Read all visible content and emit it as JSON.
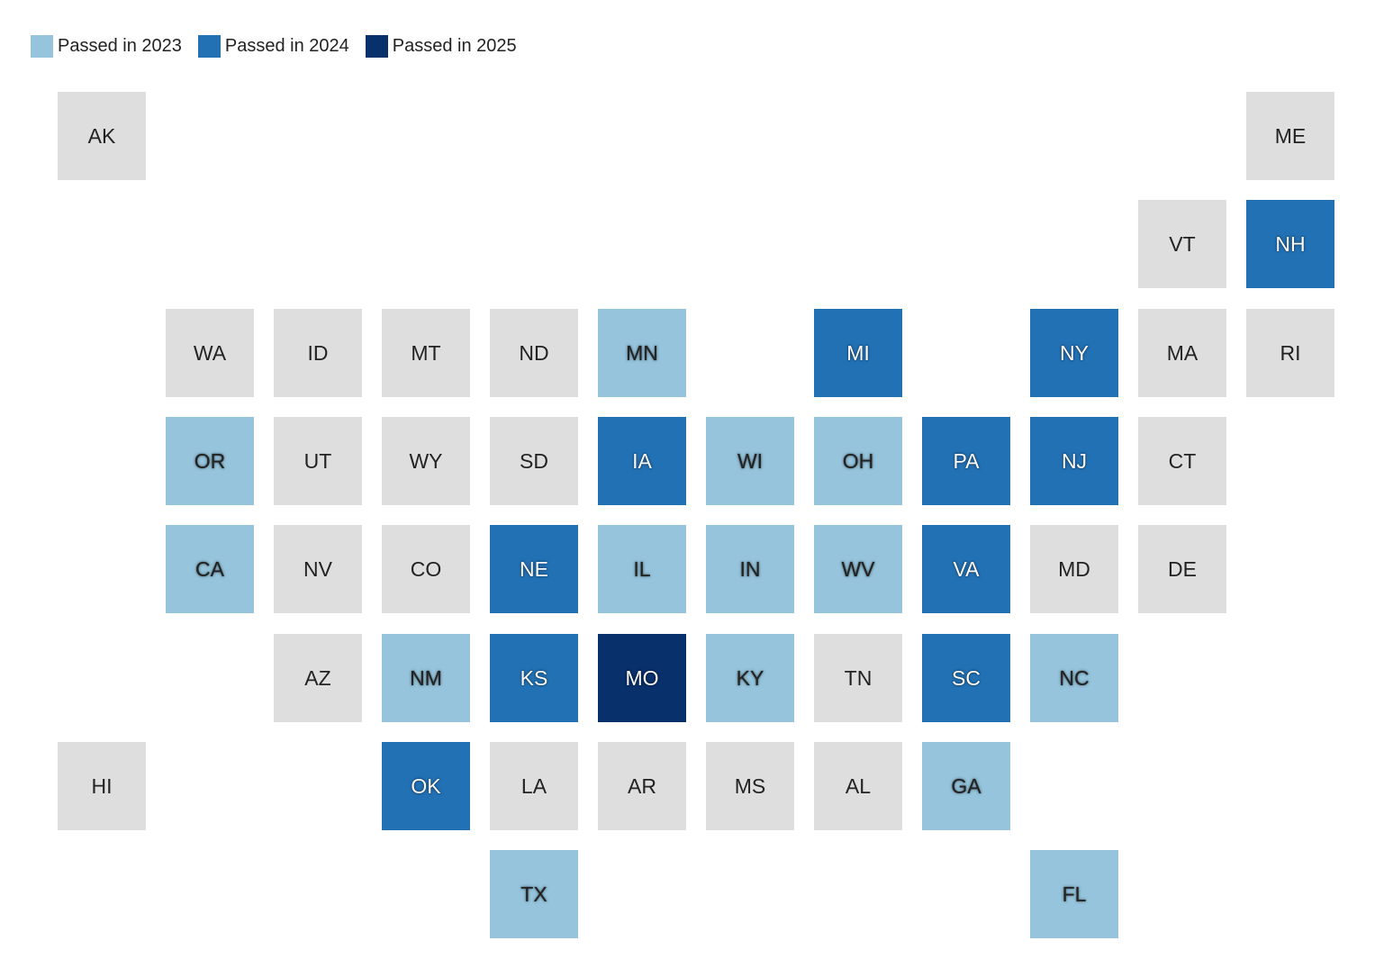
{
  "colors": {
    "none": "#dedede",
    "2023": "#95c4dc",
    "2024": "#2271b5",
    "2025": "#08306b"
  },
  "legend": [
    {
      "key": "2023",
      "label": "Passed in 2023"
    },
    {
      "key": "2024",
      "label": "Passed in 2024"
    },
    {
      "key": "2025",
      "label": "Passed in 2025"
    }
  ],
  "states": [
    {
      "abbr": "AK",
      "row": 0,
      "col": 0,
      "status": "none"
    },
    {
      "abbr": "ME",
      "row": 0,
      "col": 11,
      "status": "none"
    },
    {
      "abbr": "VT",
      "row": 1,
      "col": 10,
      "status": "none"
    },
    {
      "abbr": "NH",
      "row": 1,
      "col": 11,
      "status": "2024"
    },
    {
      "abbr": "WA",
      "row": 2,
      "col": 1,
      "status": "none"
    },
    {
      "abbr": "ID",
      "row": 2,
      "col": 2,
      "status": "none"
    },
    {
      "abbr": "MT",
      "row": 2,
      "col": 3,
      "status": "none"
    },
    {
      "abbr": "ND",
      "row": 2,
      "col": 4,
      "status": "none"
    },
    {
      "abbr": "MN",
      "row": 2,
      "col": 5,
      "status": "2023"
    },
    {
      "abbr": "MI",
      "row": 2,
      "col": 7,
      "status": "2024"
    },
    {
      "abbr": "NY",
      "row": 2,
      "col": 9,
      "status": "2024"
    },
    {
      "abbr": "MA",
      "row": 2,
      "col": 10,
      "status": "none"
    },
    {
      "abbr": "RI",
      "row": 2,
      "col": 11,
      "status": "none"
    },
    {
      "abbr": "OR",
      "row": 3,
      "col": 1,
      "status": "2023"
    },
    {
      "abbr": "UT",
      "row": 3,
      "col": 2,
      "status": "none"
    },
    {
      "abbr": "WY",
      "row": 3,
      "col": 3,
      "status": "none"
    },
    {
      "abbr": "SD",
      "row": 3,
      "col": 4,
      "status": "none"
    },
    {
      "abbr": "IA",
      "row": 3,
      "col": 5,
      "status": "2024"
    },
    {
      "abbr": "WI",
      "row": 3,
      "col": 6,
      "status": "2023"
    },
    {
      "abbr": "OH",
      "row": 3,
      "col": 7,
      "status": "2023"
    },
    {
      "abbr": "PA",
      "row": 3,
      "col": 8,
      "status": "2024"
    },
    {
      "abbr": "NJ",
      "row": 3,
      "col": 9,
      "status": "2024"
    },
    {
      "abbr": "CT",
      "row": 3,
      "col": 10,
      "status": "none"
    },
    {
      "abbr": "CA",
      "row": 4,
      "col": 1,
      "status": "2023"
    },
    {
      "abbr": "NV",
      "row": 4,
      "col": 2,
      "status": "none"
    },
    {
      "abbr": "CO",
      "row": 4,
      "col": 3,
      "status": "none"
    },
    {
      "abbr": "NE",
      "row": 4,
      "col": 4,
      "status": "2024"
    },
    {
      "abbr": "IL",
      "row": 4,
      "col": 5,
      "status": "2023"
    },
    {
      "abbr": "IN",
      "row": 4,
      "col": 6,
      "status": "2023"
    },
    {
      "abbr": "WV",
      "row": 4,
      "col": 7,
      "status": "2023"
    },
    {
      "abbr": "VA",
      "row": 4,
      "col": 8,
      "status": "2024"
    },
    {
      "abbr": "MD",
      "row": 4,
      "col": 9,
      "status": "none"
    },
    {
      "abbr": "DE",
      "row": 4,
      "col": 10,
      "status": "none"
    },
    {
      "abbr": "AZ",
      "row": 5,
      "col": 2,
      "status": "none"
    },
    {
      "abbr": "NM",
      "row": 5,
      "col": 3,
      "status": "2023"
    },
    {
      "abbr": "KS",
      "row": 5,
      "col": 4,
      "status": "2024"
    },
    {
      "abbr": "MO",
      "row": 5,
      "col": 5,
      "status": "2025"
    },
    {
      "abbr": "KY",
      "row": 5,
      "col": 6,
      "status": "2023"
    },
    {
      "abbr": "TN",
      "row": 5,
      "col": 7,
      "status": "none"
    },
    {
      "abbr": "SC",
      "row": 5,
      "col": 8,
      "status": "2024"
    },
    {
      "abbr": "NC",
      "row": 5,
      "col": 9,
      "status": "2023"
    },
    {
      "abbr": "HI",
      "row": 6,
      "col": 0,
      "status": "none"
    },
    {
      "abbr": "OK",
      "row": 6,
      "col": 3,
      "status": "2024"
    },
    {
      "abbr": "LA",
      "row": 6,
      "col": 4,
      "status": "none"
    },
    {
      "abbr": "AR",
      "row": 6,
      "col": 5,
      "status": "none"
    },
    {
      "abbr": "MS",
      "row": 6,
      "col": 6,
      "status": "none"
    },
    {
      "abbr": "AL",
      "row": 6,
      "col": 7,
      "status": "none"
    },
    {
      "abbr": "GA",
      "row": 6,
      "col": 8,
      "status": "2023"
    },
    {
      "abbr": "TX",
      "row": 7,
      "col": 4,
      "status": "2023"
    },
    {
      "abbr": "FL",
      "row": 7,
      "col": 9,
      "status": "2023"
    }
  ]
}
